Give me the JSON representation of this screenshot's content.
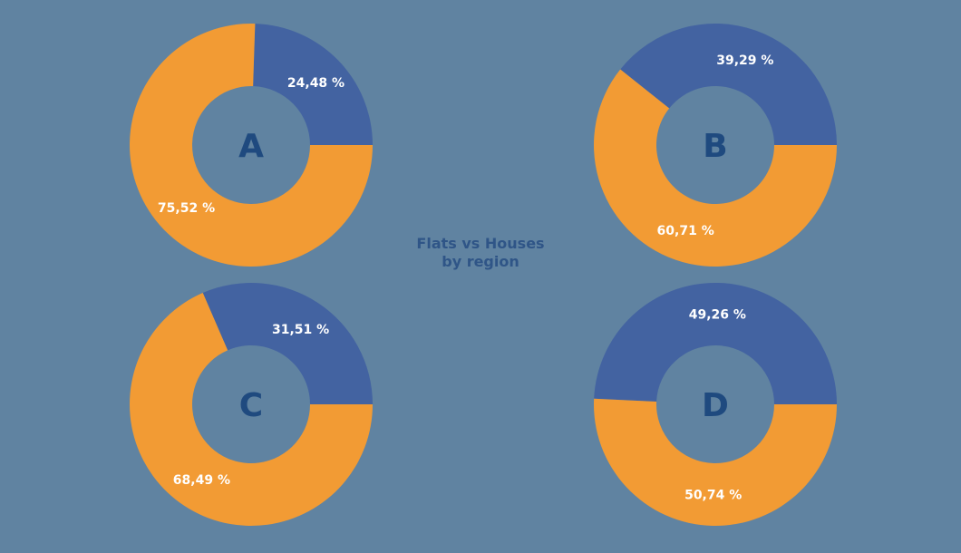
{
  "title": {
    "line1": "Flats vs Houses",
    "line2": "by region"
  },
  "colors": {
    "background": "#6083a1",
    "series1": "#4363a1",
    "series2": "#f29b34",
    "center_label": "#1f4a7f",
    "title": "#2f5587",
    "data_label": "#ffffff"
  },
  "chart_data": [
    {
      "type": "pie",
      "subtype": "donut",
      "title": "A",
      "categories": [
        "Blue segment",
        "Orange segment"
      ],
      "values": [
        24.48,
        75.52
      ],
      "labels": [
        "24,48 %",
        "75,52 %"
      ]
    },
    {
      "type": "pie",
      "subtype": "donut",
      "title": "B",
      "categories": [
        "Blue segment",
        "Orange segment"
      ],
      "values": [
        39.29,
        60.71
      ],
      "labels": [
        "39,29 %",
        "60,71 %"
      ]
    },
    {
      "type": "pie",
      "subtype": "donut",
      "title": "C",
      "categories": [
        "Blue segment",
        "Orange segment"
      ],
      "values": [
        31.51,
        68.49
      ],
      "labels": [
        "31,51 %",
        "68,49 %"
      ]
    },
    {
      "type": "pie",
      "subtype": "donut",
      "title": "D",
      "categories": [
        "Blue segment",
        "Orange segment"
      ],
      "values": [
        49.26,
        50.74
      ],
      "labels": [
        "49,26 %",
        "50,74 %"
      ]
    }
  ],
  "overall_title": "Flats vs Houses by region"
}
